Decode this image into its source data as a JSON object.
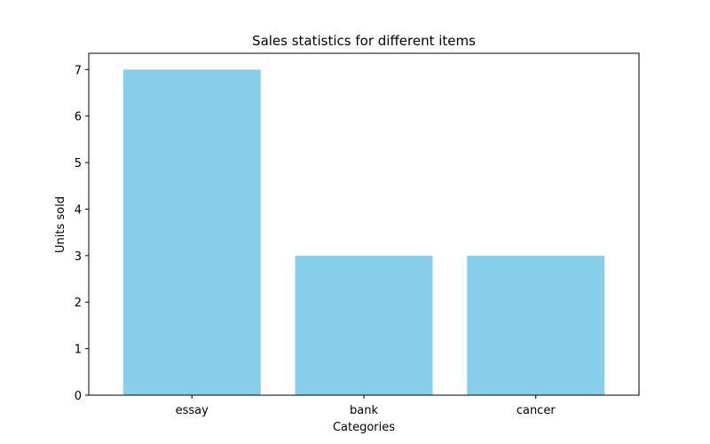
{
  "chart_data": {
    "type": "bar",
    "title": "Sales statistics for different items",
    "xlabel": "Categories",
    "ylabel": "Units sold",
    "categories": [
      "essay",
      "bank",
      "cancer"
    ],
    "values": [
      7,
      3,
      3
    ],
    "ylim": [
      0,
      7.35
    ],
    "yticks": [
      0,
      1,
      2,
      3,
      4,
      5,
      6,
      7
    ],
    "bar_color": "#87ceeb",
    "grid": false,
    "legend": "none"
  }
}
